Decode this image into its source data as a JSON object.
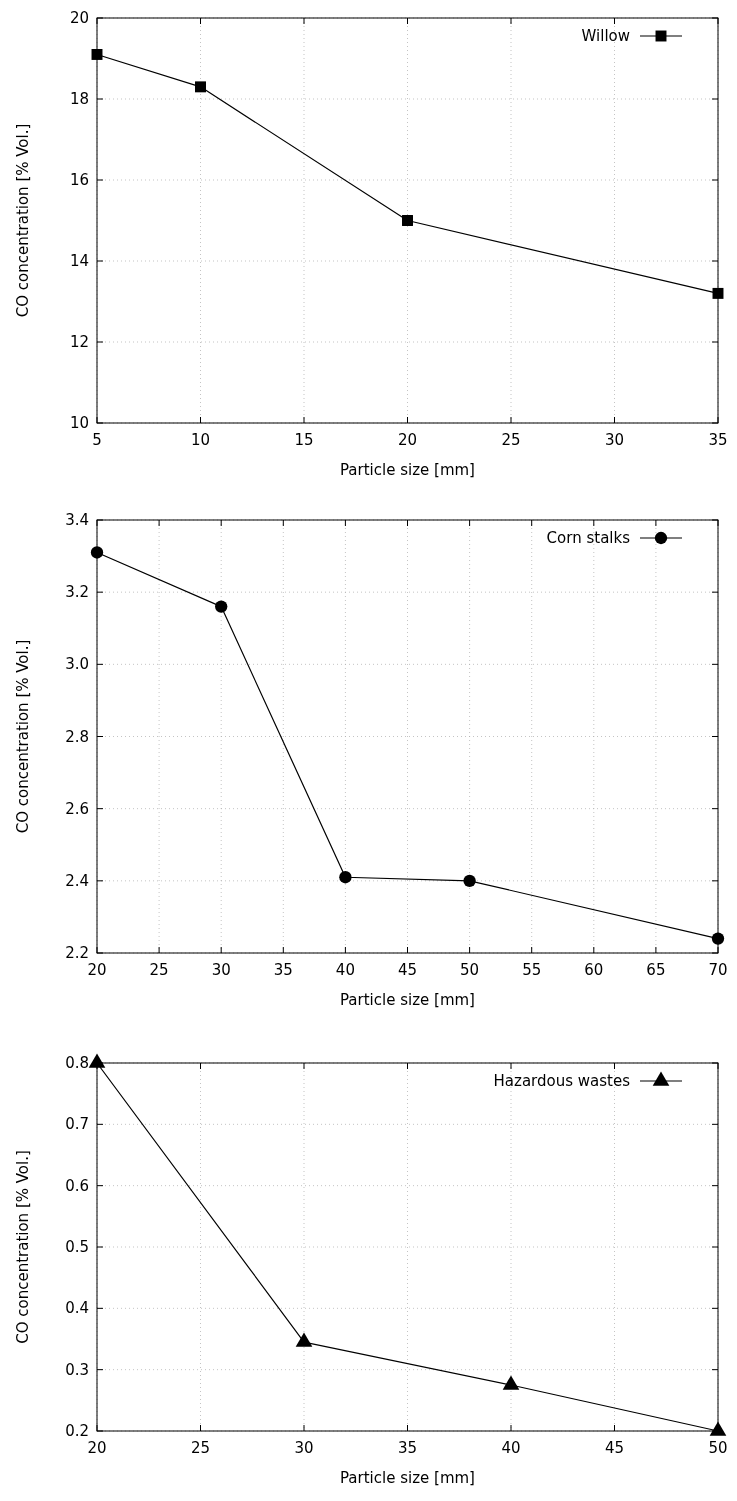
{
  "chart_data": [
    {
      "type": "line",
      "xlabel": "Particle size [mm]",
      "ylabel": "CO concentration [% Vol.]",
      "x": [
        5,
        10,
        20,
        35
      ],
      "xlim": [
        5,
        35
      ],
      "xticks": [
        5,
        10,
        15,
        20,
        25,
        30,
        35
      ],
      "ylim": [
        10,
        20
      ],
      "yticks": [
        10,
        12,
        14,
        16,
        18,
        20
      ],
      "grid": true,
      "legend": "top right",
      "marker": "square",
      "line_style": "solid",
      "series": [
        {
          "name": "Willow",
          "color": "#000000",
          "values": [
            19.1,
            18.3,
            15.0,
            13.2
          ]
        }
      ]
    },
    {
      "type": "line",
      "xlabel": "Particle size [mm]",
      "ylabel": "CO concentration [% Vol.]",
      "x": [
        20,
        30,
        40,
        50,
        70
      ],
      "xlim": [
        20,
        70
      ],
      "xticks": [
        20,
        25,
        30,
        35,
        40,
        45,
        50,
        55,
        60,
        65,
        70
      ],
      "ylim": [
        2.2,
        3.4
      ],
      "yticks": [
        {
          "value": 2.2,
          "label": "2.2"
        },
        {
          "value": 2.4,
          "label": "2.4"
        },
        {
          "value": 2.6,
          "label": "2.6"
        },
        {
          "value": 2.8,
          "label": "2.8"
        },
        {
          "value": 3.0,
          "label": "3.0"
        },
        {
          "value": 3.2,
          "label": "3.2"
        },
        {
          "value": 3.4,
          "label": "3.4"
        }
      ],
      "grid": true,
      "legend": "top right",
      "marker": "circle",
      "line_style": "solid",
      "series": [
        {
          "name": "Corn stalks",
          "color": "#000000",
          "values": [
            3.31,
            3.16,
            2.41,
            2.4,
            2.24
          ]
        }
      ]
    },
    {
      "type": "line",
      "xlabel": "Particle size [mm]",
      "ylabel": "CO concentration [% Vol.]",
      "x": [
        20,
        30,
        40,
        50
      ],
      "xlim": [
        20,
        50
      ],
      "xticks": [
        20,
        25,
        30,
        35,
        40,
        45,
        50
      ],
      "ylim": [
        0.2,
        0.8
      ],
      "yticks": [
        0.2,
        0.3,
        0.4,
        0.5,
        0.6,
        0.7,
        0.8
      ],
      "grid": true,
      "legend": "top right",
      "marker": "triangle",
      "line_style": "solid",
      "series": [
        {
          "name": "Hazardous wastes",
          "color": "#000000",
          "values": [
            0.8,
            0.345,
            0.275,
            0.2
          ]
        }
      ]
    }
  ]
}
